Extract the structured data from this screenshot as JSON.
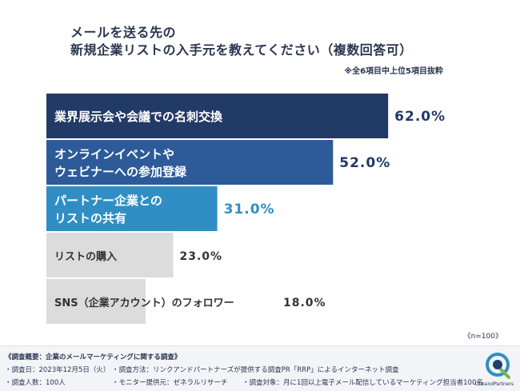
{
  "title_lines": [
    "メールを送る先の",
    "新規企業リストの入手元を教えてください（複数回答可）"
  ],
  "note": "※全6項目中上位5項目抜粋",
  "n_label": "《n=100》",
  "chart_data": {
    "type": "bar",
    "orientation": "horizontal",
    "categories": [
      [
        "業界展示会や会議での名刺交換"
      ],
      [
        "オンラインイベントや",
        "ウェビナーへの参加登録"
      ],
      [
        "パートナー企業との",
        "リストの共有"
      ],
      [
        "リストの購入"
      ],
      [
        "SNS（企業アカウント）のフォロワー"
      ]
    ],
    "values": [
      62.0,
      52.0,
      31.0,
      23.0,
      18.0
    ],
    "value_labels": [
      "62.0%",
      "52.0%",
      "31.0%",
      "23.0%",
      "18.0%"
    ],
    "bar_colors": [
      "#223a66",
      "#2d5b9a",
      "#2f8fc4",
      "#dcdcdc",
      "#dcdcdc"
    ],
    "label_colors": [
      "#223a66",
      "#223a66",
      "#2f8fc4",
      "#333333",
      "#333333"
    ],
    "category_text_colors": [
      "#ffffff",
      "#ffffff",
      "#ffffff",
      "#333333",
      "#333333"
    ],
    "xlim": [
      0,
      100
    ],
    "grid": false,
    "legend": "none"
  },
  "footer": {
    "heading": "《調査概要：企業のメールマーケティングに関する調査》",
    "items": [
      "・調査日：2023年12月5日（火）",
      "・調査方法：リンクアンドパートナーズが提供する調査PR「RRP」によるインターネット調査",
      "・調査人数：100人",
      "・モニター提供元：ゼネラルリサーチ",
      "・調査対象：月に1回以上電子メール配信しているマーケティング担当者100名"
    ]
  },
  "logo": {
    "text": "LinkandPartners"
  }
}
